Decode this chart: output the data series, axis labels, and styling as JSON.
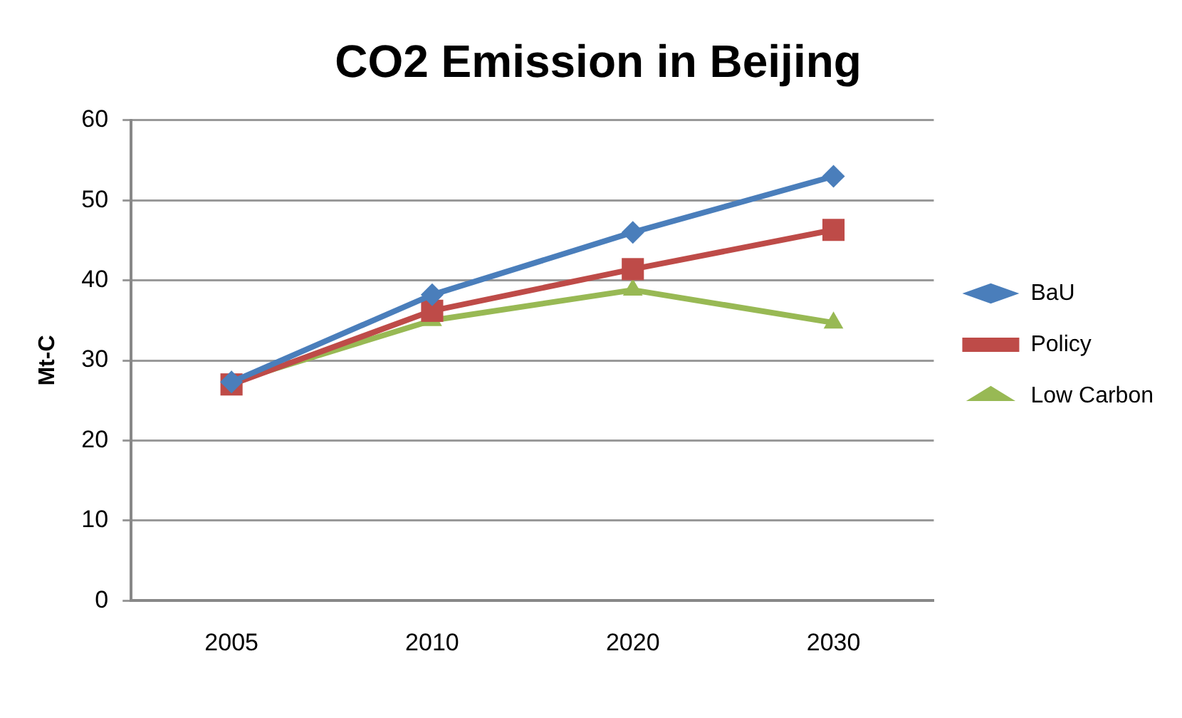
{
  "chart_data": {
    "type": "line",
    "title": "CO2 Emission in Beijing",
    "ylabel": "Mt-C",
    "categories": [
      "2005",
      "2010",
      "2020",
      "2030"
    ],
    "series": [
      {
        "name": "BaU",
        "color": "#4a7ebb",
        "marker": "diamond",
        "values": [
          27.3,
          38.2,
          46.0,
          53.0
        ]
      },
      {
        "name": "Policy",
        "color": "#be4b48",
        "marker": "square",
        "values": [
          27.0,
          36.2,
          41.4,
          46.3
        ]
      },
      {
        "name": "Low Carbon",
        "color": "#98b954",
        "marker": "triangle",
        "values": [
          27.3,
          35.0,
          38.8,
          34.7
        ]
      }
    ],
    "ylim": [
      0,
      60
    ],
    "yticks": [
      0,
      10,
      20,
      30,
      40,
      50,
      60
    ],
    "grid": "y",
    "legend": "right",
    "line_style": "solid"
  }
}
